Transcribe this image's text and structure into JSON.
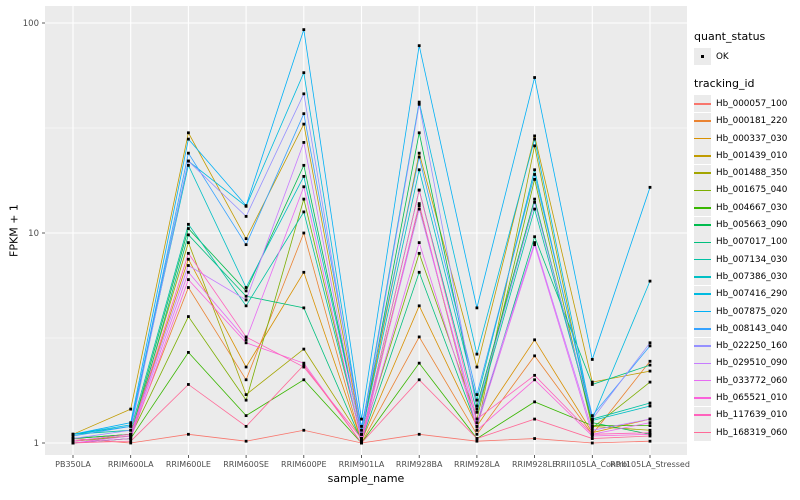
{
  "chart_data": {
    "type": "line",
    "title": "",
    "xlabel": "sample_name",
    "ylabel": "FPKM + 1",
    "y_scale": "log10",
    "ylim": [
      1,
      100
    ],
    "y_ticks": [
      1,
      10,
      100
    ],
    "y_tick_labels": [
      "1",
      "10",
      "100"
    ],
    "y_minor_gridlines": [
      3.162,
      31.62
    ],
    "grid": true,
    "legend_position": "right",
    "point_marker": "small black square",
    "categories": [
      "PB350LA",
      "RRIM600LA",
      "RRIM600LE",
      "RRIM600SE",
      "RRIM600PE",
      "RRIM901LA",
      "RRIM928BA",
      "RRIM928LA",
      "RRIM928LE",
      "RRII105LA_Control",
      "RRII105LA_Stressed"
    ],
    "series": [
      {
        "name": "Hb_000057_100",
        "color": "#F8766D",
        "values": [
          1.05,
          1.0,
          1.1,
          1.02,
          1.15,
          1.0,
          1.1,
          1.02,
          1.05,
          1.0,
          1.02
        ]
      },
      {
        "name": "Hb_000181_220",
        "color": "#EA8331",
        "values": [
          1.02,
          1.08,
          5.5,
          2.0,
          10.0,
          1.0,
          3.2,
          1.1,
          2.6,
          1.1,
          2.45
        ]
      },
      {
        "name": "Hb_000337_030",
        "color": "#D89000",
        "values": [
          1.05,
          1.1,
          7.5,
          2.3,
          6.5,
          1.02,
          4.5,
          1.2,
          3.1,
          1.12,
          1.3
        ]
      },
      {
        "name": "Hb_001439_010",
        "color": "#C09B00",
        "values": [
          1.1,
          1.45,
          30.0,
          9.4,
          33.0,
          1.1,
          24.0,
          2.3,
          29.0,
          1.95,
          2.2
        ]
      },
      {
        "name": "Hb_001488_350",
        "color": "#A3A500",
        "values": [
          1.05,
          1.1,
          9.0,
          1.7,
          2.8,
          1.05,
          13.5,
          1.15,
          26.0,
          1.2,
          1.15
        ]
      },
      {
        "name": "Hb_001675_040",
        "color": "#7CAE00",
        "values": [
          1.02,
          1.08,
          4.0,
          1.6,
          14.5,
          1.05,
          8.0,
          1.3,
          18.0,
          1.18,
          1.95
        ]
      },
      {
        "name": "Hb_004667_030",
        "color": "#39B600",
        "values": [
          1.0,
          1.05,
          2.7,
          1.35,
          2.0,
          1.0,
          2.4,
          1.05,
          1.57,
          1.21,
          1.21
        ]
      },
      {
        "name": "Hb_005663_090",
        "color": "#00BB4E",
        "values": [
          1.05,
          1.1,
          10.5,
          5.3,
          21.0,
          1.1,
          30.0,
          1.5,
          14.5,
          1.25,
          1.1
        ]
      },
      {
        "name": "Hb_007017_100",
        "color": "#00BF7D",
        "values": [
          1.0,
          1.05,
          9.8,
          5.0,
          4.4,
          1.02,
          6.5,
          1.2,
          9.6,
          1.9,
          2.35
        ]
      },
      {
        "name": "Hb_007134_030",
        "color": "#00C1A3",
        "values": [
          1.1,
          1.15,
          11.0,
          4.5,
          12.6,
          1.05,
          16.0,
          1.4,
          13.0,
          1.3,
          1.55
        ]
      },
      {
        "name": "Hb_007386_030",
        "color": "#00BFC4",
        "values": [
          1.1,
          1.2,
          21.0,
          5.5,
          18.6,
          1.1,
          20.0,
          1.6,
          20.0,
          1.28,
          1.5
        ]
      },
      {
        "name": "Hb_007416_290",
        "color": "#00BAE0",
        "values": [
          1.1,
          1.22,
          22.0,
          13.4,
          58.0,
          1.15,
          42.0,
          2.65,
          28.0,
          1.3,
          5.9
        ]
      },
      {
        "name": "Hb_007875_020",
        "color": "#00B0F6",
        "values": [
          1.1,
          1.25,
          28.0,
          13.5,
          93.0,
          1.3,
          78.0,
          4.4,
          55.0,
          2.5,
          16.5
        ]
      },
      {
        "name": "Hb_008143_040",
        "color": "#35A2FF",
        "values": [
          1.08,
          1.2,
          24.0,
          8.8,
          37.0,
          1.2,
          23.0,
          1.7,
          19.0,
          1.35,
          2.9
        ]
      },
      {
        "name": "Hb_022250_160",
        "color": "#9590FF",
        "values": [
          1.05,
          1.15,
          22.0,
          12.0,
          46.0,
          1.1,
          41.0,
          1.45,
          14.0,
          1.3,
          3.0
        ]
      },
      {
        "name": "Hb_029510_090",
        "color": "#C77CFF",
        "values": [
          1.02,
          1.1,
          7.0,
          4.8,
          27.0,
          1.05,
          13.0,
          1.25,
          9.0,
          1.15,
          1.3
        ]
      },
      {
        "name": "Hb_033772_060",
        "color": "#E76BF3",
        "values": [
          1.0,
          1.08,
          6.5,
          3.1,
          16.6,
          1.02,
          9.0,
          1.2,
          8.8,
          1.1,
          1.25
        ]
      },
      {
        "name": "Hb_065521_010",
        "color": "#FA62DB",
        "values": [
          1.0,
          1.05,
          6.0,
          3.0,
          2.4,
          1.0,
          13.8,
          1.15,
          2.0,
          1.08,
          1.1
        ]
      },
      {
        "name": "Hb_117639_010",
        "color": "#FF62BC",
        "values": [
          1.02,
          1.1,
          8.0,
          3.2,
          2.3,
          1.05,
          16.0,
          1.3,
          2.1,
          1.1,
          1.12
        ]
      },
      {
        "name": "Hb_168319_060",
        "color": "#FF6A98",
        "values": [
          1.0,
          1.02,
          1.9,
          1.2,
          2.35,
          1.0,
          2.0,
          1.05,
          1.3,
          1.05,
          1.08
        ]
      }
    ]
  },
  "legend": {
    "quant_status_title": "quant_status",
    "ok_label": "OK",
    "tracking_id_title": "tracking_id"
  },
  "colors": {
    "panel_bg": "#EBEBEB",
    "gridline": "#FFFFFF",
    "tick_text": "#4D4D4D",
    "axis_title_text": "#000000",
    "point": "#000000",
    "legend_key_bg": "#EBEBEB"
  }
}
